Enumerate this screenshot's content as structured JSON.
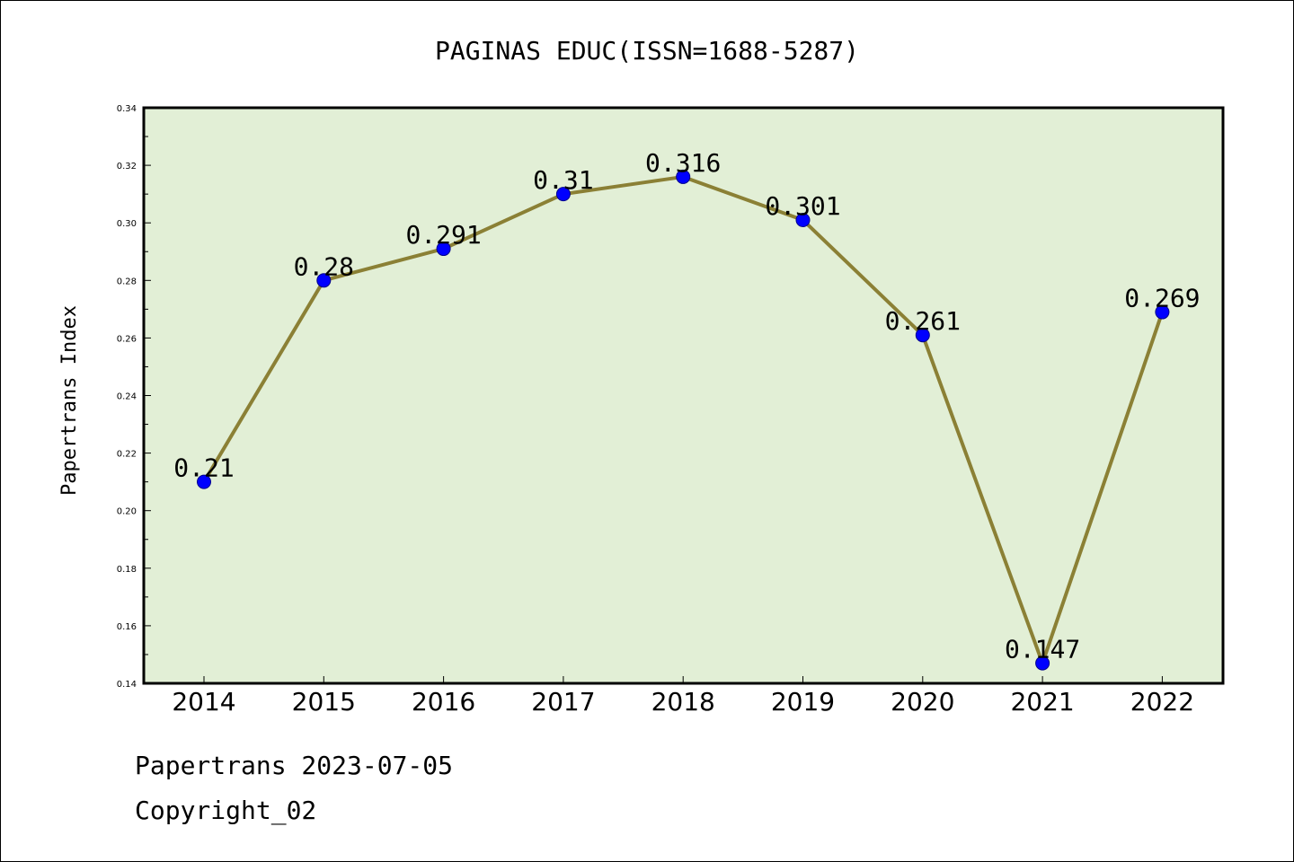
{
  "chart_data": {
    "type": "line",
    "title": "PAGINAS EDUC(ISSN=1688-5287)",
    "xlabel": "",
    "ylabel": "Papertrans Index",
    "categories": [
      "2014",
      "2015",
      "2016",
      "2017",
      "2018",
      "2019",
      "2020",
      "2021",
      "2022"
    ],
    "series": [
      {
        "values": [
          0.21,
          0.28,
          0.291,
          0.31,
          0.316,
          0.301,
          0.261,
          0.147,
          0.269
        ],
        "labels": [
          "0.21",
          "0.28",
          "0.291",
          "0.31",
          "0.316",
          "0.301",
          "0.261",
          "0.147",
          "0.269"
        ]
      }
    ],
    "ylim": [
      0.14,
      0.34
    ],
    "yticks": [
      "0.14",
      "0.16",
      "0.18",
      "0.20",
      "0.22",
      "0.24",
      "0.26",
      "0.28",
      "0.30",
      "0.32",
      "0.34"
    ],
    "grid": false,
    "colors": {
      "plot_background": "#e2efd6",
      "line": "#8b8035",
      "marker": "#0000ff"
    }
  },
  "footer": {
    "line1": "Papertrans 2023-07-05",
    "line2": "Copyright_02"
  }
}
